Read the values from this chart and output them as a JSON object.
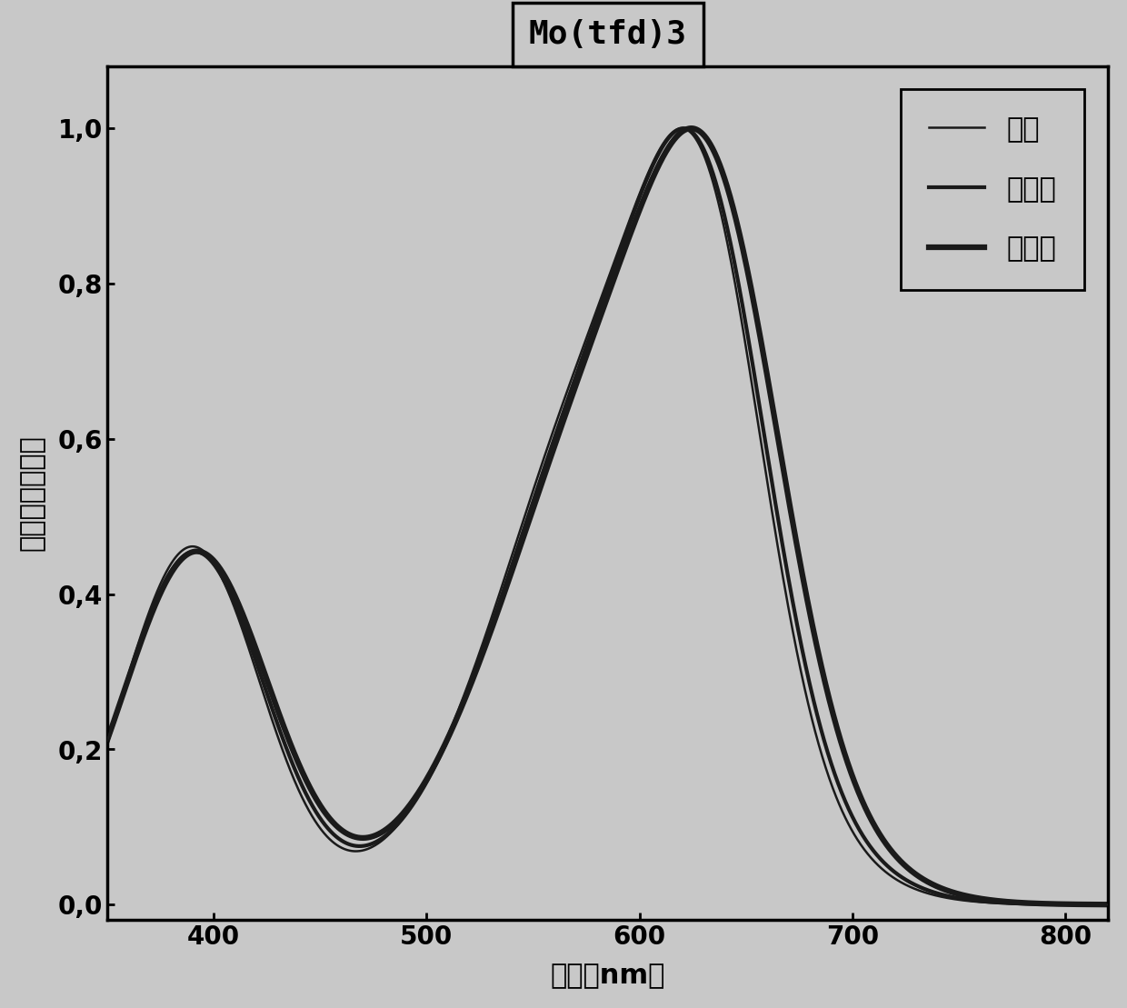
{
  "title": "Mo(tfd)3",
  "xlabel": "波长（nm）",
  "ylabel": "归一化的吸收值",
  "xlim": [
    350,
    820
  ],
  "ylim": [
    -0.02,
    1.08
  ],
  "xticks": [
    400,
    500,
    600,
    700,
    800
  ],
  "yticks": [
    0.0,
    0.2,
    0.4,
    0.6,
    0.8,
    1.0
  ],
  "ytick_labels": [
    "0,0",
    "0,2",
    "0,4",
    "0,6",
    "0,8",
    "1,0"
  ],
  "background_color": "#c8c8c8",
  "plot_bg_color": "#c8c8c8",
  "legend_labels": [
    "甲苯",
    "苯甲醚",
    "苯甲腈"
  ],
  "title_fontsize": 26,
  "label_fontsize": 22,
  "tick_fontsize": 20,
  "legend_fontsize": 22
}
